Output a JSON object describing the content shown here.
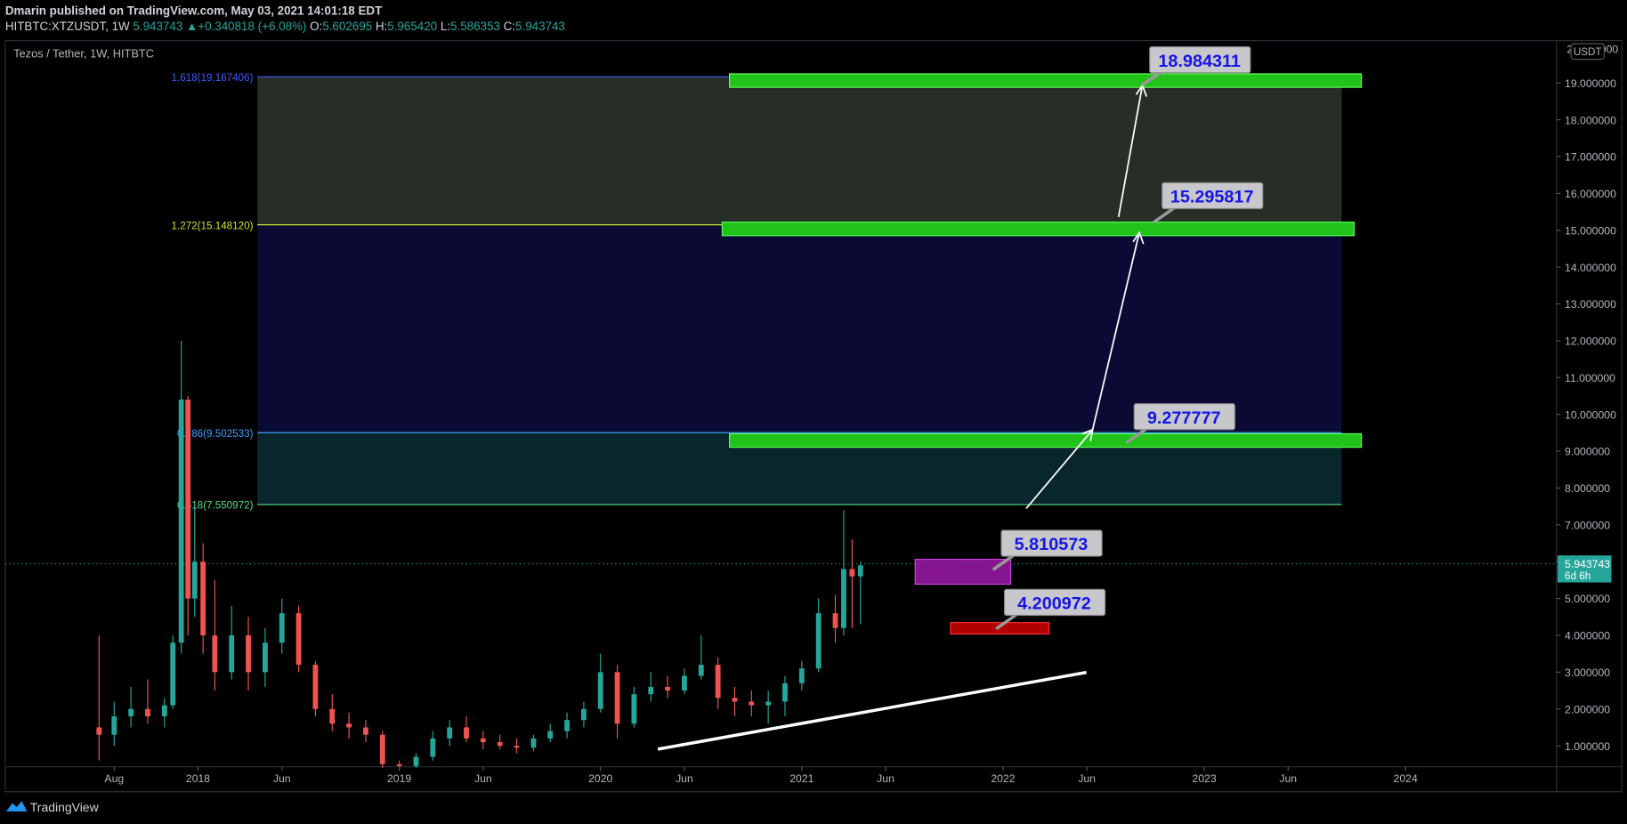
{
  "header": {
    "author": "Dmarin published on TradingView.com, May 03, 2021 14:01:18 EDT",
    "symbol": "HITBTC:XTZUSDT, 1W",
    "last": "5.943743",
    "arrow": "▲",
    "change": "+0.340818 (+6.08%)",
    "ohlc": [
      {
        "key": "O:",
        "value": "5.602695"
      },
      {
        "key": "H:",
        "value": "5.965420"
      },
      {
        "key": "L:",
        "value": "5.586353"
      },
      {
        "key": "C:",
        "value": "5.943743"
      }
    ]
  },
  "chart": {
    "legend": "Tezos / Tether, 1W, HITBTC",
    "currency": "USDT",
    "top_label": "20.000000",
    "ylim": [
      0.43,
      20.15
    ],
    "yticks": [
      {
        "value": 1,
        "label": "1.000000"
      },
      {
        "value": 2,
        "label": "2.000000"
      },
      {
        "value": 3,
        "label": "3.000000"
      },
      {
        "value": 4,
        "label": "4.000000"
      },
      {
        "value": 5,
        "label": "5.000000"
      },
      {
        "value": 6,
        "label": "6.000000"
      },
      {
        "value": 7,
        "label": "7.000000"
      },
      {
        "value": 8,
        "label": "8.000000"
      },
      {
        "value": 9,
        "label": "9.000000"
      },
      {
        "value": 10,
        "label": "10.000000"
      },
      {
        "value": 11,
        "label": "11.000000"
      },
      {
        "value": 12,
        "label": "12.000000"
      },
      {
        "value": 13,
        "label": "13.000000"
      },
      {
        "value": 14,
        "label": "14.000000"
      },
      {
        "value": 15,
        "label": "15.000000"
      },
      {
        "value": 16,
        "label": "16.000000"
      },
      {
        "value": 17,
        "label": "17.000000"
      },
      {
        "value": 18,
        "label": "18.000000"
      },
      {
        "value": 19,
        "label": "19.000000"
      }
    ],
    "xlim": [
      -11.5,
      81
    ],
    "xticks": [
      {
        "value": -5,
        "label": "Aug"
      },
      {
        "value": 0,
        "label": "2018"
      },
      {
        "value": 5,
        "label": "Jun"
      },
      {
        "value": 12,
        "label": "2019"
      },
      {
        "value": 17,
        "label": "Jun"
      },
      {
        "value": 24,
        "label": "2020"
      },
      {
        "value": 29,
        "label": "Jun"
      },
      {
        "value": 36,
        "label": "2021"
      },
      {
        "value": 41,
        "label": "Jun"
      },
      {
        "value": 48,
        "label": "2022"
      },
      {
        "value": 53,
        "label": "Jun"
      },
      {
        "value": 60,
        "label": "2023"
      },
      {
        "value": 65,
        "label": "Jun"
      },
      {
        "value": 72,
        "label": "2024"
      }
    ],
    "fib": [
      {
        "label": "1.618(19.167406)",
        "value": 19.167406,
        "color": "#3c5cff"
      },
      {
        "label": "1.272(15.148120)",
        "value": 15.14812,
        "color": "#c8e632"
      },
      {
        "label": "0.786(9.502533)",
        "value": 9.502533,
        "color": "#3aa0ff"
      },
      {
        "label": "0.618(7.550972)",
        "value": 7.550972,
        "color": "#4fe08a"
      }
    ],
    "callouts": [
      "18.984311",
      "15.295817",
      "9.277777",
      "5.810573",
      "4.200972"
    ],
    "current": {
      "price": 5.943743,
      "label": "5.943743",
      "countdown": "6d 6h"
    },
    "candles": [
      [
        -5.9,
        1.5,
        4.0,
        0.6,
        1.3
      ],
      [
        -5,
        1.3,
        2.2,
        1.0,
        1.8
      ],
      [
        -4,
        1.8,
        2.6,
        1.5,
        2.0
      ],
      [
        -3,
        2.0,
        2.8,
        1.6,
        1.8
      ],
      [
        -2,
        1.8,
        2.3,
        1.5,
        2.1
      ],
      [
        -1.5,
        2.1,
        4.0,
        2.0,
        3.8
      ],
      [
        -1,
        3.8,
        12.0,
        3.5,
        10.4
      ],
      [
        -0.6,
        10.4,
        10.5,
        4.0,
        5.0
      ],
      [
        -0.2,
        5.0,
        7.6,
        4.5,
        6.0
      ],
      [
        0.3,
        6.0,
        6.5,
        3.5,
        4.0
      ],
      [
        1,
        4.0,
        5.5,
        2.5,
        3.0
      ],
      [
        2,
        3.0,
        4.8,
        2.8,
        4.0
      ],
      [
        3,
        4.0,
        4.5,
        2.5,
        3.0
      ],
      [
        4,
        3.0,
        4.2,
        2.6,
        3.8
      ],
      [
        5,
        3.8,
        5.0,
        3.5,
        4.6
      ],
      [
        6,
        4.6,
        4.8,
        3.0,
        3.2
      ],
      [
        7,
        3.2,
        3.3,
        1.8,
        2.0
      ],
      [
        8,
        2.0,
        2.4,
        1.4,
        1.6
      ],
      [
        9,
        1.6,
        1.9,
        1.2,
        1.5
      ],
      [
        10,
        1.5,
        1.7,
        1.1,
        1.3
      ],
      [
        11,
        1.3,
        1.4,
        0.4,
        0.5
      ],
      [
        12,
        0.5,
        0.6,
        0.35,
        0.45
      ],
      [
        13,
        0.45,
        0.8,
        0.4,
        0.7
      ],
      [
        14,
        0.7,
        1.4,
        0.6,
        1.2
      ],
      [
        15,
        1.2,
        1.7,
        1.0,
        1.5
      ],
      [
        16,
        1.5,
        1.8,
        1.1,
        1.2
      ],
      [
        17,
        1.2,
        1.4,
        0.9,
        1.1
      ],
      [
        18,
        1.1,
        1.3,
        0.9,
        1.0
      ],
      [
        19,
        1.0,
        1.2,
        0.8,
        0.95
      ],
      [
        20,
        0.95,
        1.3,
        0.85,
        1.2
      ],
      [
        21,
        1.2,
        1.6,
        1.1,
        1.4
      ],
      [
        22,
        1.4,
        1.9,
        1.2,
        1.7
      ],
      [
        23,
        1.7,
        2.2,
        1.5,
        2.0
      ],
      [
        24,
        2.0,
        3.5,
        1.9,
        3.0
      ],
      [
        25,
        3.0,
        3.2,
        1.2,
        1.6
      ],
      [
        26,
        1.6,
        2.6,
        1.5,
        2.4
      ],
      [
        27,
        2.4,
        3.0,
        2.2,
        2.6
      ],
      [
        28,
        2.6,
        2.9,
        2.3,
        2.5
      ],
      [
        29,
        2.5,
        3.1,
        2.4,
        2.9
      ],
      [
        30,
        2.9,
        4.0,
        2.8,
        3.2
      ],
      [
        31,
        3.2,
        3.4,
        2.0,
        2.3
      ],
      [
        32,
        2.3,
        2.6,
        1.8,
        2.2
      ],
      [
        33,
        2.2,
        2.5,
        1.8,
        2.1
      ],
      [
        34,
        2.1,
        2.5,
        1.6,
        2.2
      ],
      [
        35,
        2.2,
        2.9,
        1.8,
        2.7
      ],
      [
        36,
        2.7,
        3.3,
        2.5,
        3.1
      ],
      [
        37,
        3.1,
        5.0,
        3.0,
        4.6
      ],
      [
        38,
        4.6,
        5.1,
        3.8,
        4.2
      ],
      [
        38.5,
        4.2,
        7.4,
        4.0,
        5.8
      ],
      [
        39,
        5.8,
        6.6,
        4.2,
        5.6
      ],
      [
        39.5,
        5.6,
        6.0,
        4.3,
        5.9
      ]
    ]
  },
  "footer": {
    "brand": "TradingView"
  }
}
